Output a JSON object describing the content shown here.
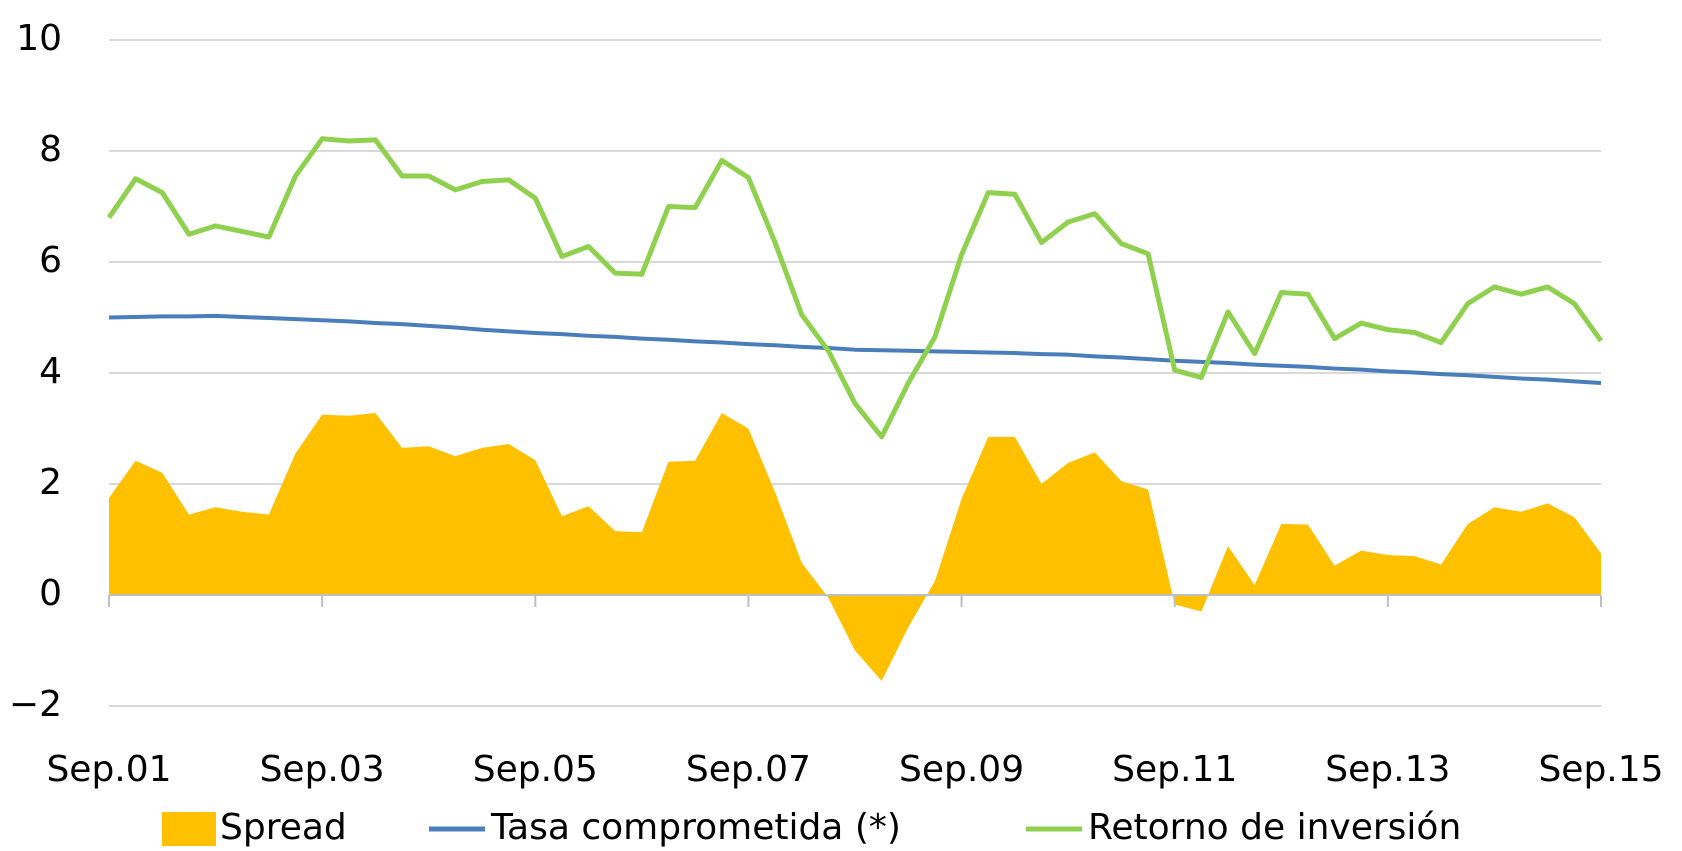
{
  "chart_data": {
    "type": "line",
    "categories": [
      "Sep.01",
      null,
      null,
      null,
      null,
      null,
      null,
      null,
      "Sep.03",
      null,
      null,
      null,
      null,
      null,
      null,
      null,
      "Sep.05",
      null,
      null,
      null,
      null,
      null,
      null,
      null,
      "Sep.07",
      null,
      null,
      null,
      null,
      null,
      null,
      null,
      "Sep.09",
      null,
      null,
      null,
      null,
      null,
      null,
      null,
      "Sep.11",
      null,
      null,
      null,
      null,
      null,
      null,
      null,
      "Sep.13",
      null,
      null,
      null,
      null,
      null,
      null,
      null,
      "Sep.15"
    ],
    "series": [
      {
        "name": "Spread",
        "kind": "area",
        "color": "#ffc000",
        "values": [
          1.75,
          2.42,
          2.2,
          1.45,
          1.58,
          1.5,
          1.45,
          2.55,
          3.25,
          3.23,
          3.28,
          2.65,
          2.68,
          2.5,
          2.65,
          2.72,
          2.43,
          1.42,
          1.6,
          1.15,
          1.13,
          2.4,
          2.42,
          3.28,
          3.0,
          1.85,
          0.58,
          -0.05,
          -1.0,
          -1.55,
          -0.58,
          0.25,
          1.73,
          2.85,
          2.85,
          2.0,
          2.38,
          2.57,
          2.05,
          1.9,
          -0.17,
          -0.3,
          0.88,
          0.18,
          1.28,
          1.27,
          0.53,
          0.8,
          0.72,
          0.7,
          0.55,
          1.28,
          1.58,
          1.5,
          1.65,
          1.4,
          0.75
        ]
      },
      {
        "name": "Tasa comprometida (*)",
        "kind": "line",
        "color": "#4a7ebb",
        "values": [
          5.0,
          5.01,
          5.02,
          5.02,
          5.03,
          5.01,
          4.99,
          4.97,
          4.95,
          4.93,
          4.9,
          4.88,
          4.85,
          4.82,
          4.78,
          4.75,
          4.72,
          4.7,
          4.67,
          4.65,
          4.62,
          4.6,
          4.57,
          4.55,
          4.52,
          4.5,
          4.47,
          4.45,
          4.42,
          4.41,
          4.4,
          4.39,
          4.38,
          4.37,
          4.36,
          4.34,
          4.33,
          4.3,
          4.28,
          4.25,
          4.22,
          4.2,
          4.18,
          4.15,
          4.13,
          4.11,
          4.08,
          4.06,
          4.03,
          4.01,
          3.98,
          3.96,
          3.93,
          3.9,
          3.88,
          3.85,
          3.82
        ]
      },
      {
        "name": "Retorno de inversión",
        "kind": "line",
        "color": "#8fd14f",
        "values": [
          6.8,
          7.5,
          7.25,
          6.5,
          6.65,
          6.55,
          6.45,
          7.55,
          8.22,
          8.18,
          8.2,
          7.55,
          7.55,
          7.3,
          7.45,
          7.48,
          7.15,
          6.1,
          6.28,
          5.8,
          5.78,
          7.0,
          6.98,
          7.83,
          7.52,
          6.35,
          5.05,
          4.4,
          3.45,
          2.85,
          3.82,
          4.65,
          6.13,
          7.25,
          7.22,
          6.35,
          6.72,
          6.87,
          6.33,
          6.15,
          4.05,
          3.92,
          5.1,
          4.35,
          5.45,
          5.42,
          4.62,
          4.9,
          4.78,
          4.73,
          4.55,
          5.25,
          5.55,
          5.42,
          5.55,
          5.25,
          4.58
        ]
      }
    ],
    "ylim": [
      -2,
      10
    ],
    "yticks": [
      {
        "value": -2,
        "label": "−2"
      },
      0,
      2,
      4,
      6,
      8,
      10
    ],
    "grid": true,
    "legend": "bottom"
  }
}
